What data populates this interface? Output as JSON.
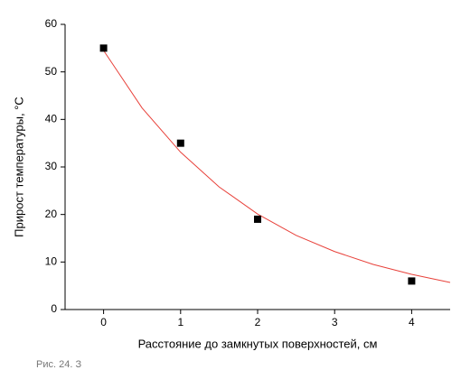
{
  "chart_data": {
    "type": "scatter",
    "x_label": "Расстояние до замкнутых поверхностей, см",
    "y_label": "Прирост температуры, °С",
    "caption": "Рис. 24. З",
    "series": [
      {
        "type": "scatter",
        "color": "#000000",
        "x": [
          0,
          1,
          2,
          4
        ],
        "values": [
          55,
          35,
          19,
          6
        ]
      },
      {
        "type": "line",
        "color": "#e8413a",
        "x": [
          0,
          0.5,
          1,
          1.5,
          2,
          2.5,
          3,
          3.5,
          4,
          4.5
        ],
        "values": [
          54.5,
          42.4,
          33.1,
          25.8,
          20.1,
          15.6,
          12.2,
          9.5,
          7.4,
          5.7
        ]
      }
    ],
    "xlim": [
      -0.5,
      4.5
    ],
    "xticks": [
      0,
      1,
      2,
      3,
      4
    ],
    "ylim": [
      0,
      60
    ],
    "yticks": [
      0,
      10,
      20,
      30,
      40,
      50,
      60
    ]
  }
}
